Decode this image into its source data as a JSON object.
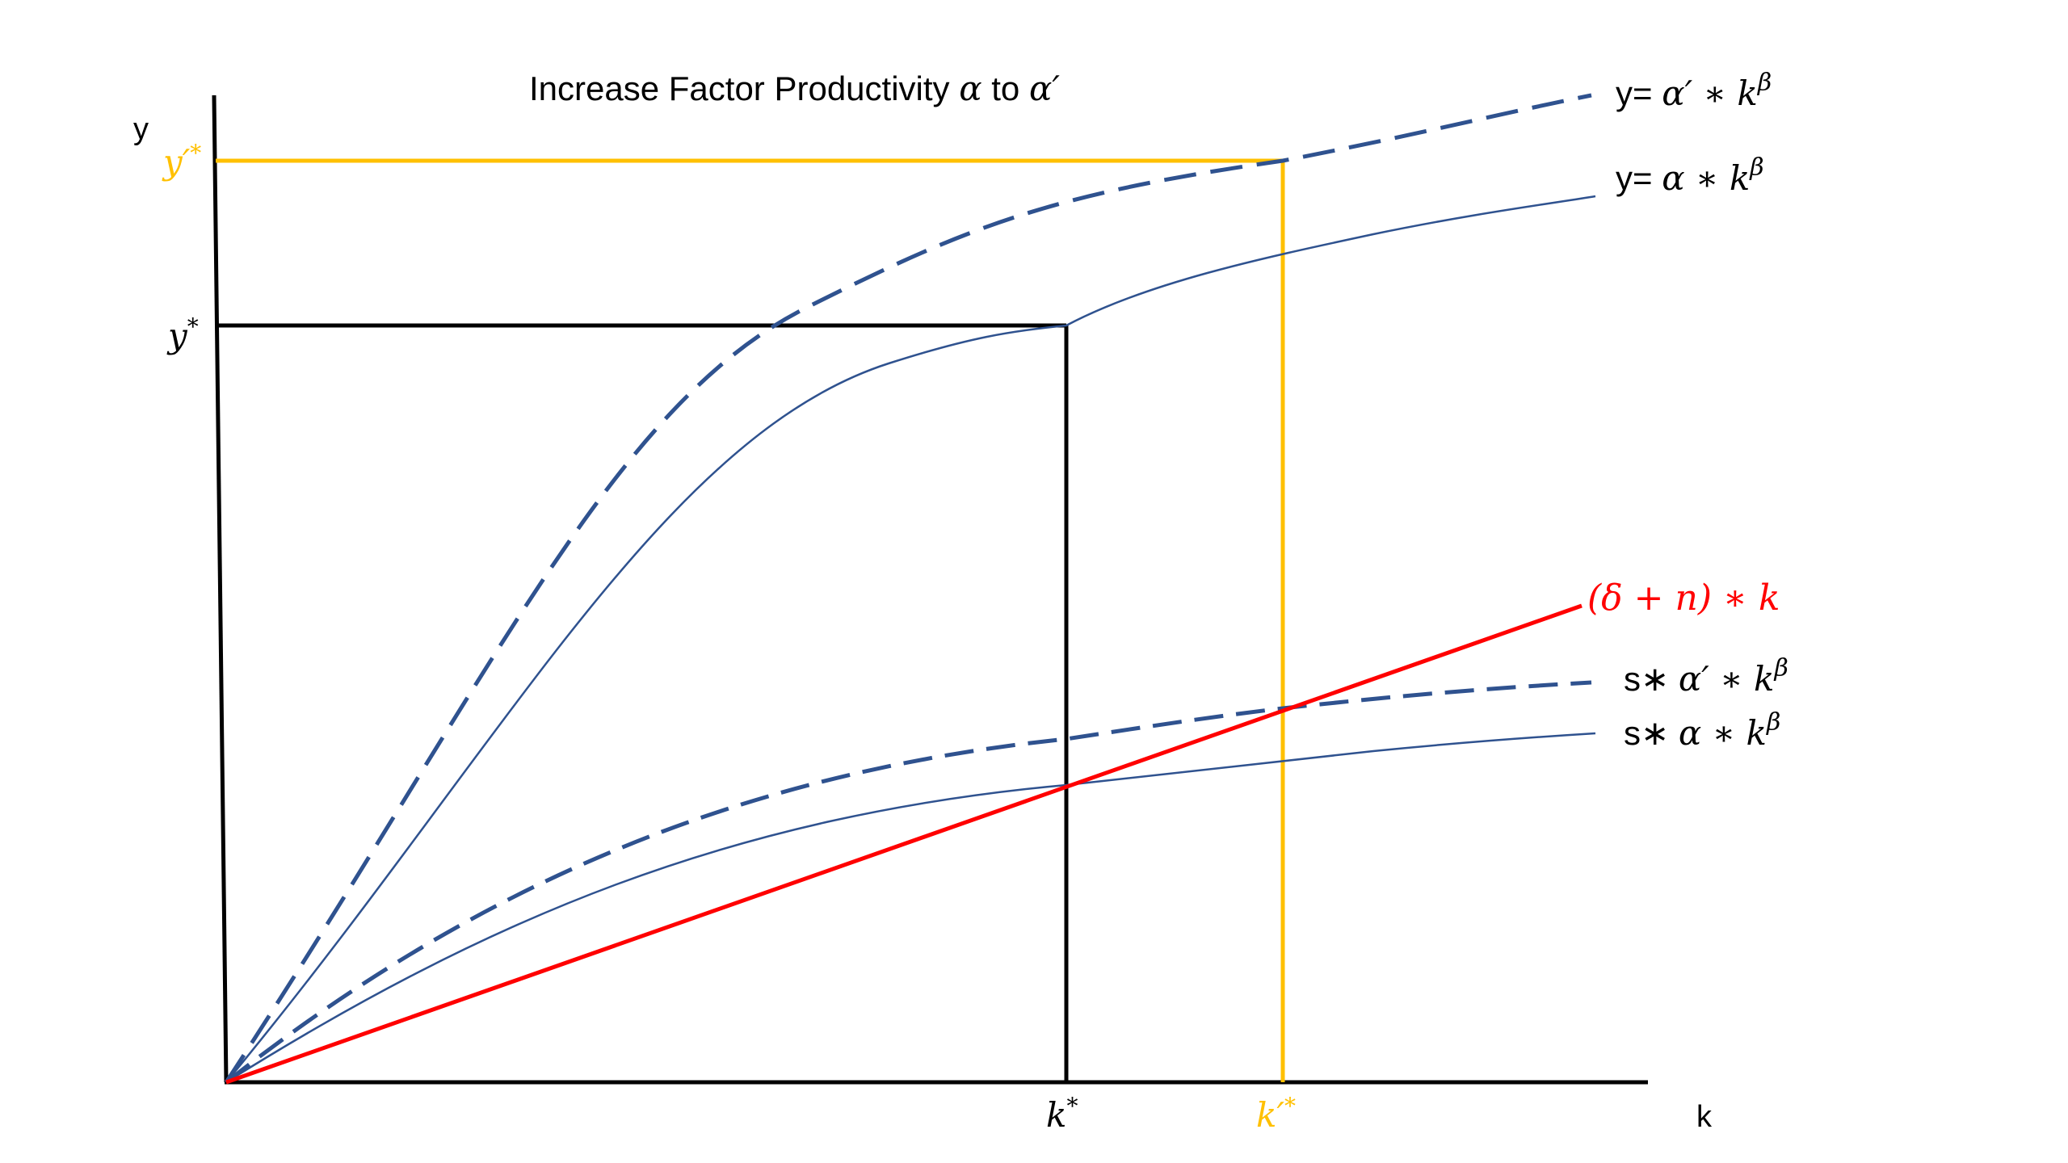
{
  "title_prefix": "Increase Factor Productivity ",
  "title_alpha": "α",
  "title_to": " to ",
  "title_alpha_prime": "α′",
  "axes": {
    "y_label": "y",
    "x_label": "k"
  },
  "ticks": {
    "y_star": {
      "base": "y",
      "sup": "*"
    },
    "y_prime_star": {
      "base": "y′",
      "sup": "*"
    },
    "k_star": {
      "base": "k",
      "sup": "*"
    },
    "k_prime_star": {
      "base": "k′",
      "sup": "*"
    }
  },
  "labels": {
    "y_alpha_prime": {
      "prefix": "y= ",
      "expr": "α′ ∗ k",
      "sup": "β"
    },
    "y_alpha": {
      "prefix": "y= ",
      "expr": "α ∗ k",
      "sup": "β"
    },
    "depreciation": {
      "prefix": "",
      "expr": "(δ + n) ∗ k",
      "sup": ""
    },
    "s_alpha_prime": {
      "prefix": "s∗ ",
      "expr": "α′ ∗ k",
      "sup": "β"
    },
    "s_alpha": {
      "prefix": "s∗ ",
      "expr": "α ∗ k",
      "sup": "β"
    }
  },
  "colors": {
    "axis": "#000000",
    "curve": "#2f528f",
    "highlight": "#ffc000",
    "depreciation": "#ff0000",
    "text": "#000000"
  }
}
